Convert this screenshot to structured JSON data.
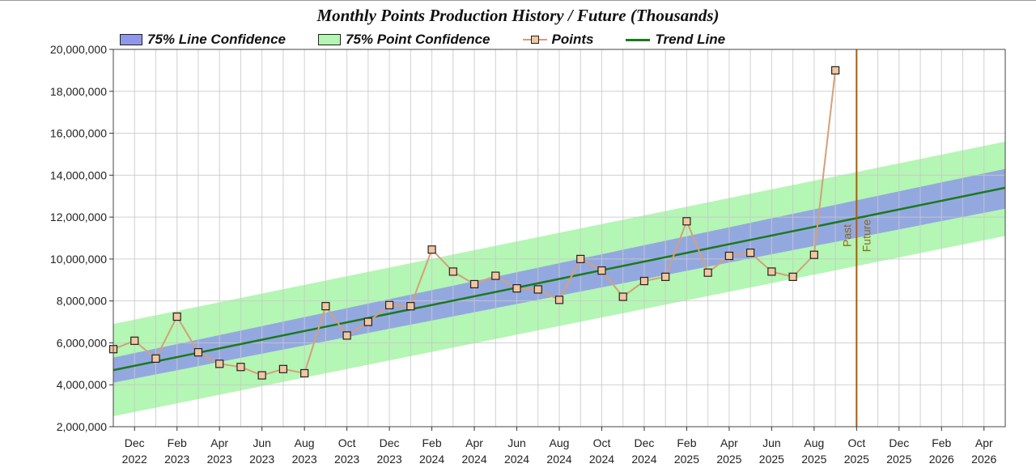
{
  "chart_data": {
    "type": "line",
    "title": "Monthly Points Production History / Future (Thousands)",
    "xlabel": "",
    "ylabel": "",
    "ylim": [
      2000000,
      20000000
    ],
    "yticks": [
      "2,000,000",
      "4,000,000",
      "6,000,000",
      "8,000,000",
      "10,000,000",
      "12,000,000",
      "14,000,000",
      "16,000,000",
      "18,000,000",
      "20,000,000"
    ],
    "xrange": [
      "2022-11",
      "2026-05"
    ],
    "xticks": [
      {
        "month": "2022-12",
        "label1": "Dec",
        "label2": "2022"
      },
      {
        "month": "2023-02",
        "label1": "Feb",
        "label2": "2023"
      },
      {
        "month": "2023-04",
        "label1": "Apr",
        "label2": "2023"
      },
      {
        "month": "2023-06",
        "label1": "Jun",
        "label2": "2023"
      },
      {
        "month": "2023-08",
        "label1": "Aug",
        "label2": "2023"
      },
      {
        "month": "2023-10",
        "label1": "Oct",
        "label2": "2023"
      },
      {
        "month": "2023-12",
        "label1": "Dec",
        "label2": "2023"
      },
      {
        "month": "2024-02",
        "label1": "Feb",
        "label2": "2024"
      },
      {
        "month": "2024-04",
        "label1": "Apr",
        "label2": "2024"
      },
      {
        "month": "2024-06",
        "label1": "Jun",
        "label2": "2024"
      },
      {
        "month": "2024-08",
        "label1": "Aug",
        "label2": "2024"
      },
      {
        "month": "2024-10",
        "label1": "Oct",
        "label2": "2024"
      },
      {
        "month": "2024-12",
        "label1": "Dec",
        "label2": "2024"
      },
      {
        "month": "2025-02",
        "label1": "Feb",
        "label2": "2025"
      },
      {
        "month": "2025-04",
        "label1": "Apr",
        "label2": "2025"
      },
      {
        "month": "2025-06",
        "label1": "Jun",
        "label2": "2025"
      },
      {
        "month": "2025-08",
        "label1": "Aug",
        "label2": "2025"
      },
      {
        "month": "2025-10",
        "label1": "Oct",
        "label2": "2025"
      },
      {
        "month": "2025-12",
        "label1": "Dec",
        "label2": "2025"
      },
      {
        "month": "2026-02",
        "label1": "Feb",
        "label2": "2026"
      },
      {
        "month": "2026-04",
        "label1": "Apr",
        "label2": "2026"
      }
    ],
    "grid": true,
    "legend_position": "top",
    "legend": [
      "75% Line Confidence",
      "75% Point Confidence",
      "Points",
      "Trend Line"
    ],
    "points": {
      "name": "Points",
      "x": [
        "2022-11",
        "2022-12",
        "2023-01",
        "2023-02",
        "2023-03",
        "2023-04",
        "2023-05",
        "2023-06",
        "2023-07",
        "2023-08",
        "2023-09",
        "2023-10",
        "2023-11",
        "2023-12",
        "2024-01",
        "2024-02",
        "2024-03",
        "2024-04",
        "2024-05",
        "2024-06",
        "2024-07",
        "2024-08",
        "2024-09",
        "2024-10",
        "2024-11",
        "2024-12",
        "2025-01",
        "2025-02",
        "2025-03",
        "2025-04",
        "2025-05",
        "2025-06",
        "2025-07",
        "2025-08",
        "2025-09"
      ],
      "y": [
        5700000,
        6100000,
        5250000,
        7250000,
        5550000,
        5000000,
        4850000,
        4450000,
        4750000,
        4550000,
        7750000,
        6350000,
        7000000,
        7800000,
        7750000,
        10450000,
        9400000,
        8800000,
        9200000,
        8600000,
        8550000,
        8050000,
        10000000,
        9450000,
        8200000,
        8950000,
        9150000,
        11800000,
        9350000,
        10150000,
        10300000,
        9400000,
        9150000,
        10200000,
        19000000
      ]
    },
    "trend_line": {
      "name": "Trend Line",
      "x": [
        "2022-11",
        "2026-05"
      ],
      "y": [
        4700000,
        13400000
      ]
    },
    "line_confidence": {
      "name": "75% Line Confidence",
      "x": [
        "2022-11",
        "2026-05"
      ],
      "lower": [
        4100000,
        12400000
      ],
      "upper": [
        5300000,
        14300000
      ]
    },
    "point_confidence": {
      "name": "75% Point Confidence",
      "x": [
        "2022-11",
        "2026-05"
      ],
      "lower": [
        2500000,
        11100000
      ],
      "upper": [
        6900000,
        15600000
      ]
    },
    "annotation": {
      "month": "2025-10",
      "past_label": "Past",
      "future_label": "Future"
    },
    "colors": {
      "point_band": "#b4f6b4",
      "line_band": "#94a8e0",
      "trend": "#1a7a1a",
      "points_line": "#d4a07a",
      "marker_fill": "#f2c6a0",
      "marker_edge": "#222222",
      "divider": "#b25a00",
      "annotation_text": "#8a6a1a",
      "grid": "#c8c8c8"
    }
  }
}
